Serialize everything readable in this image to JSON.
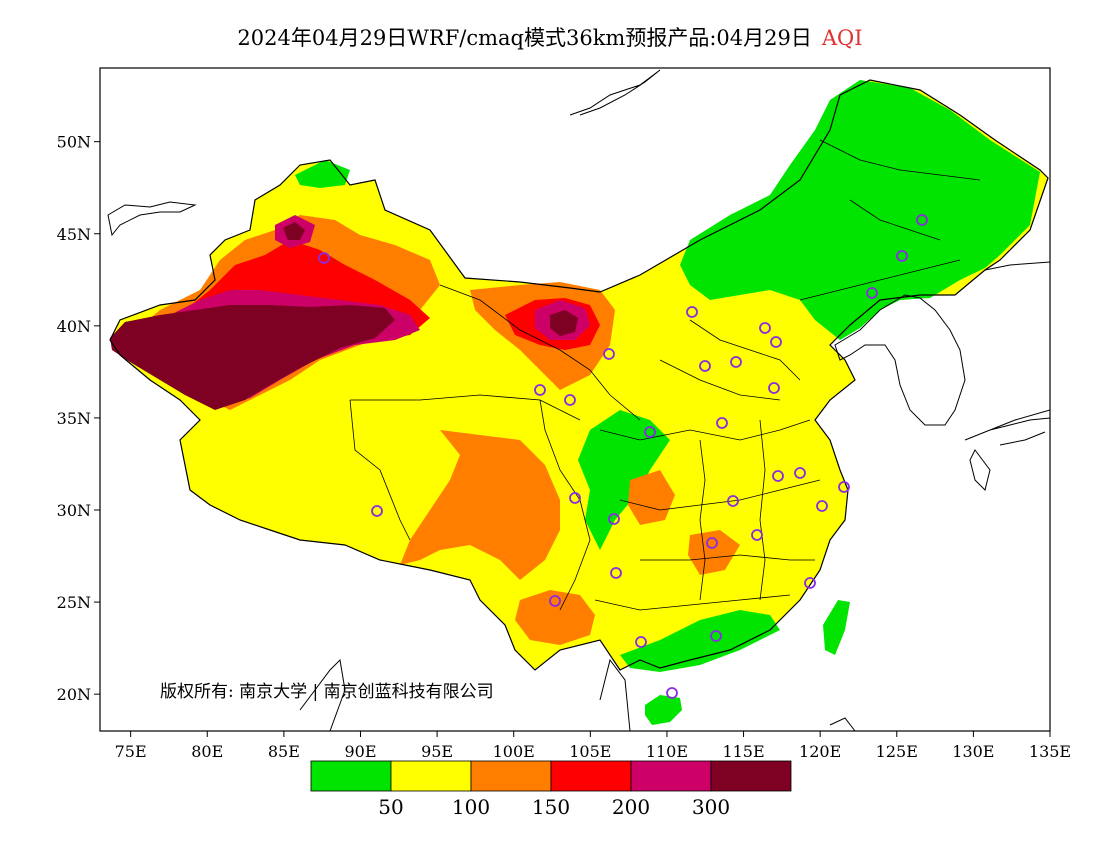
{
  "title": {
    "main": "2024年04月29日WRF/cmaq模式36km预报产品:04月29日",
    "product": "AQI",
    "product_color": "#e03030"
  },
  "map": {
    "lon_range": [
      73,
      135
    ],
    "lat_range": [
      18,
      54
    ],
    "x_ticks": [
      "75E",
      "80E",
      "85E",
      "90E",
      "95E",
      "100E",
      "105E",
      "110E",
      "115E",
      "120E",
      "125E",
      "130E",
      "135E"
    ],
    "y_ticks": [
      "50N",
      "45N",
      "40N",
      "35N",
      "30N",
      "25N",
      "20N"
    ]
  },
  "copyright": "版权所有: 南京大学 | 南京创蓝科技有限公司",
  "legend": {
    "colors": [
      "#00e400",
      "#ffff00",
      "#ff7e00",
      "#ff0000",
      "#cc0066",
      "#7e0023"
    ],
    "labels": [
      "50",
      "100",
      "150",
      "200",
      "300"
    ]
  },
  "stations_color": "#8a2be2"
}
